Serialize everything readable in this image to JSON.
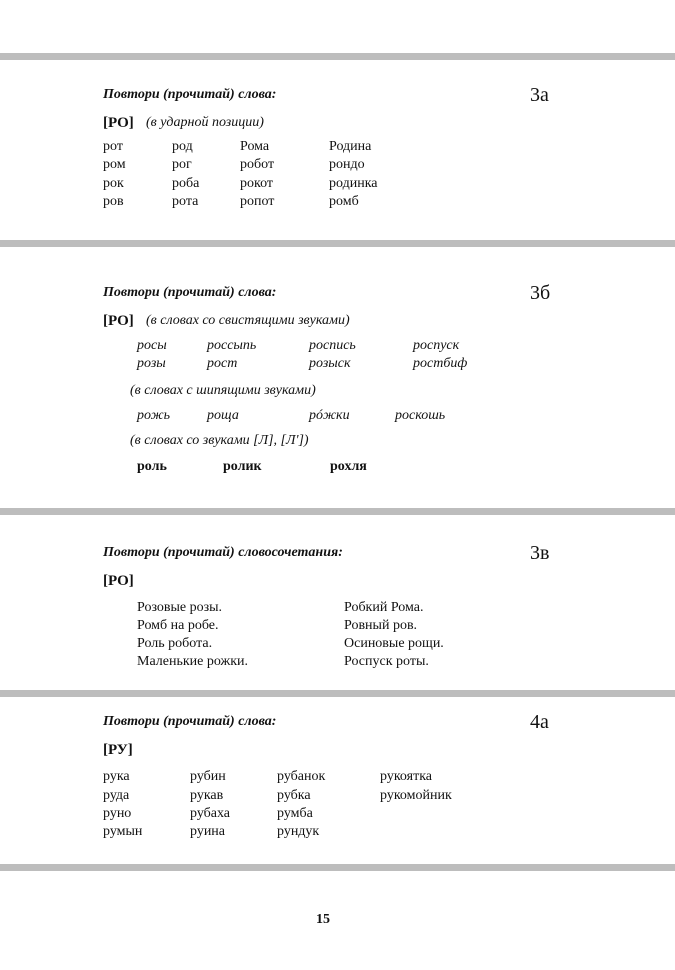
{
  "sections": [
    {
      "number": "3а",
      "title": "Повтори (прочитай) слова:",
      "sound": "[РО]",
      "note": "(в ударной позиции)",
      "rows": [
        [
          "рот",
          "род",
          "Рома",
          "Родина"
        ],
        [
          "ром",
          "рог",
          "робот",
          "рондо"
        ],
        [
          "рок",
          "роба",
          "рокот",
          "родинка"
        ],
        [
          "ров",
          "рота",
          "ропот",
          "ромб"
        ]
      ]
    },
    {
      "number": "3б",
      "title": "Повтори (прочитай) слова:",
      "sound": "[РО]",
      "note": "(в словах со свистящими звуками)",
      "rows": [
        [
          "росы",
          "россыпь",
          "роспись",
          "роспуск"
        ],
        [
          "розы",
          "рост",
          "розыск",
          "ростбиф"
        ]
      ],
      "note2": "(в словах с шипящими звуками)",
      "rows2": [
        [
          "рожь",
          "роща",
          "рóжки",
          "роскошь"
        ]
      ],
      "note3": "(в словах со звуками [Л], [Л'])",
      "rows3": [
        [
          "роль",
          "ролик",
          "рохля"
        ]
      ]
    },
    {
      "number": "3в",
      "title": "Повтори (прочитай) словосочетания:",
      "sound": "[РО]",
      "rows": [
        [
          "Розовые розы.",
          "Робкий Рома."
        ],
        [
          "Ромб на робе.",
          "Ровный ров."
        ],
        [
          "Роль робота.",
          "Осиновые рощи."
        ],
        [
          "Маленькие рожки.",
          "Роспуск роты."
        ]
      ]
    },
    {
      "number": "4а",
      "title": "Повтори (прочитай) слова:",
      "sound": "[РУ]",
      "rows": [
        [
          "рука",
          "рубин",
          "рубанок",
          "рукоятка"
        ],
        [
          "руда",
          "рукав",
          "рубка",
          "рукомойник"
        ],
        [
          "руно",
          "рубаха",
          "румба",
          ""
        ],
        [
          "румын",
          "руина",
          "рундук",
          ""
        ]
      ]
    }
  ],
  "page_number": "15"
}
